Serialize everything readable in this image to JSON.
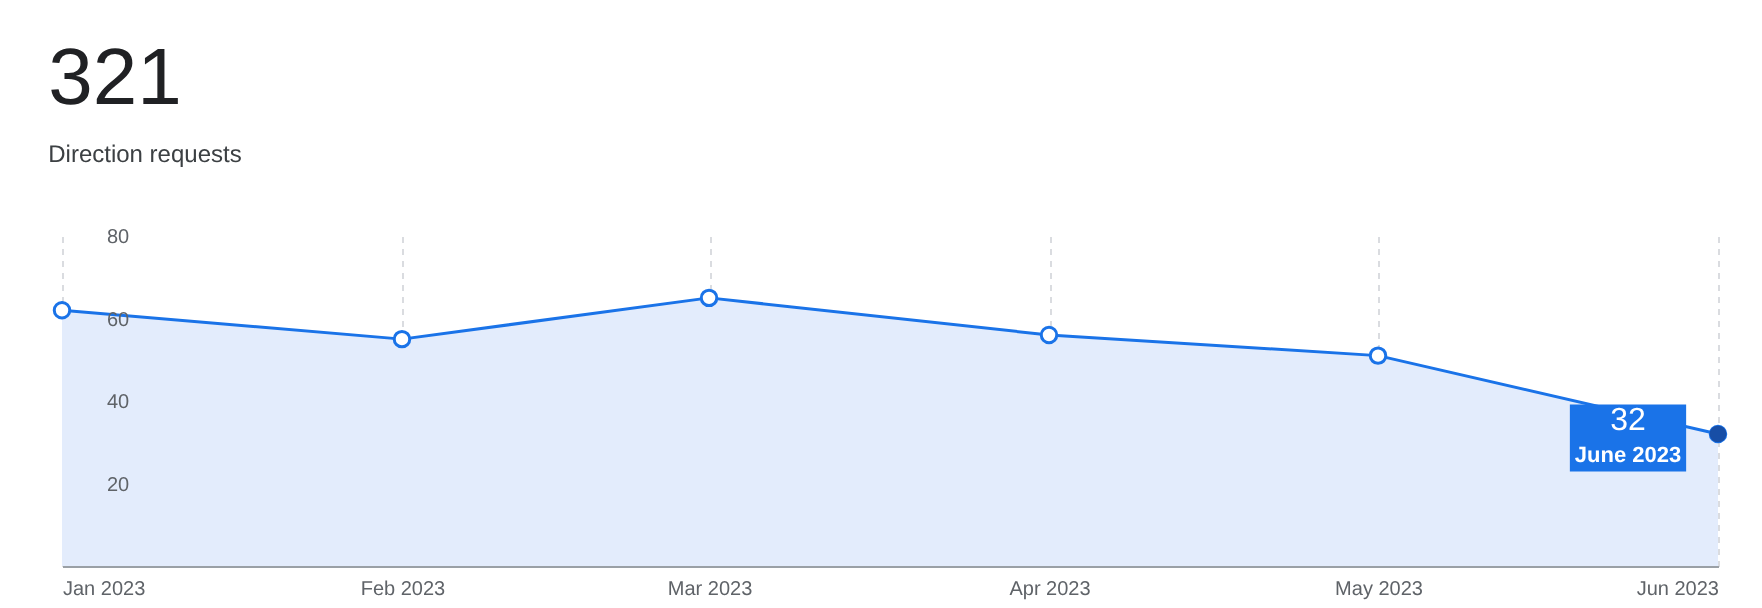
{
  "chart_data": {
    "type": "area",
    "title": "321",
    "subtitle": "Direction requests",
    "x": [
      "2023-01",
      "2023-02",
      "2023-03",
      "2023-04",
      "2023-05",
      "2023-06"
    ],
    "series": [
      {
        "color": "#1a73e8",
        "values": [
          62,
          55,
          65,
          56,
          51,
          32
        ]
      }
    ],
    "value_labels": [
      null,
      null,
      null,
      null,
      null,
      "32"
    ],
    "annotations": [
      {
        "text": "June 2023",
        "x": "2023-06",
        "y": 32
      }
    ],
    "xlim": [
      "2023-01",
      "2023-06"
    ],
    "xticks": [
      {
        "value": "2023-01",
        "label": "Jan 2023"
      },
      {
        "value": "2023-02",
        "label": "Feb 2023"
      },
      {
        "value": "2023-03",
        "label": "Mar 2023"
      },
      {
        "value": "2023-04",
        "label": "Apr 2023"
      },
      {
        "value": "2023-05",
        "label": "May 2023"
      },
      {
        "value": "2023-06",
        "label": "Jun 2023"
      }
    ],
    "ylim": [
      0,
      80
    ],
    "yticks": [
      20,
      40,
      60,
      80
    ],
    "grid": "x",
    "marker": "circle",
    "line_style": "solid"
  }
}
